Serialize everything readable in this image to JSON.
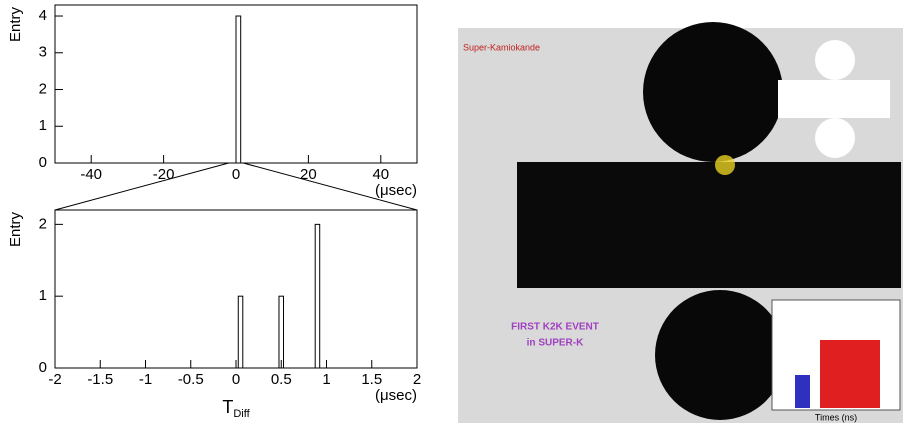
{
  "chart_data": [
    {
      "type": "histogram",
      "ylabel": "Entry",
      "xunit": "(μsec)",
      "bins": [
        0,
        1.3
      ],
      "values": [
        4
      ],
      "xlim": [
        -50,
        50
      ],
      "xticks": [
        -40,
        -20,
        0,
        20,
        40
      ],
      "ylim": [
        0,
        4.3
      ],
      "yticks": [
        0,
        1,
        2,
        3,
        4
      ],
      "color": "#ffffff"
    },
    {
      "type": "histogram",
      "ylabel": "Entry",
      "xunit": "(μsec)",
      "xlabel": "T",
      "xlabel_sub": "Diff",
      "bins": [
        0.025,
        0.075,
        0.125,
        0.175,
        0.225,
        0.275,
        0.325,
        0.375,
        0.425,
        0.475,
        0.525,
        0.575,
        0.625,
        0.675,
        0.725,
        0.775,
        0.825,
        0.875,
        0.925
      ],
      "values": [
        1,
        0,
        0,
        0,
        0,
        0,
        0,
        0,
        0,
        1,
        0,
        0,
        0,
        0,
        0,
        0,
        0,
        2
      ],
      "xlim": [
        -2,
        2
      ],
      "xticks": [
        -2,
        -1.5,
        -1,
        -0.5,
        0,
        0.5,
        1,
        1.5,
        2
      ],
      "ylim": [
        0,
        2.2
      ],
      "yticks": [
        0,
        1,
        2
      ],
      "color": "#ffffff"
    }
  ],
  "event_display": {
    "title": "Super-Kamiokande",
    "caption": [
      "FIRST K2K EVENT",
      "in SUPER-K"
    ],
    "time_axis": "Times (ns)"
  }
}
